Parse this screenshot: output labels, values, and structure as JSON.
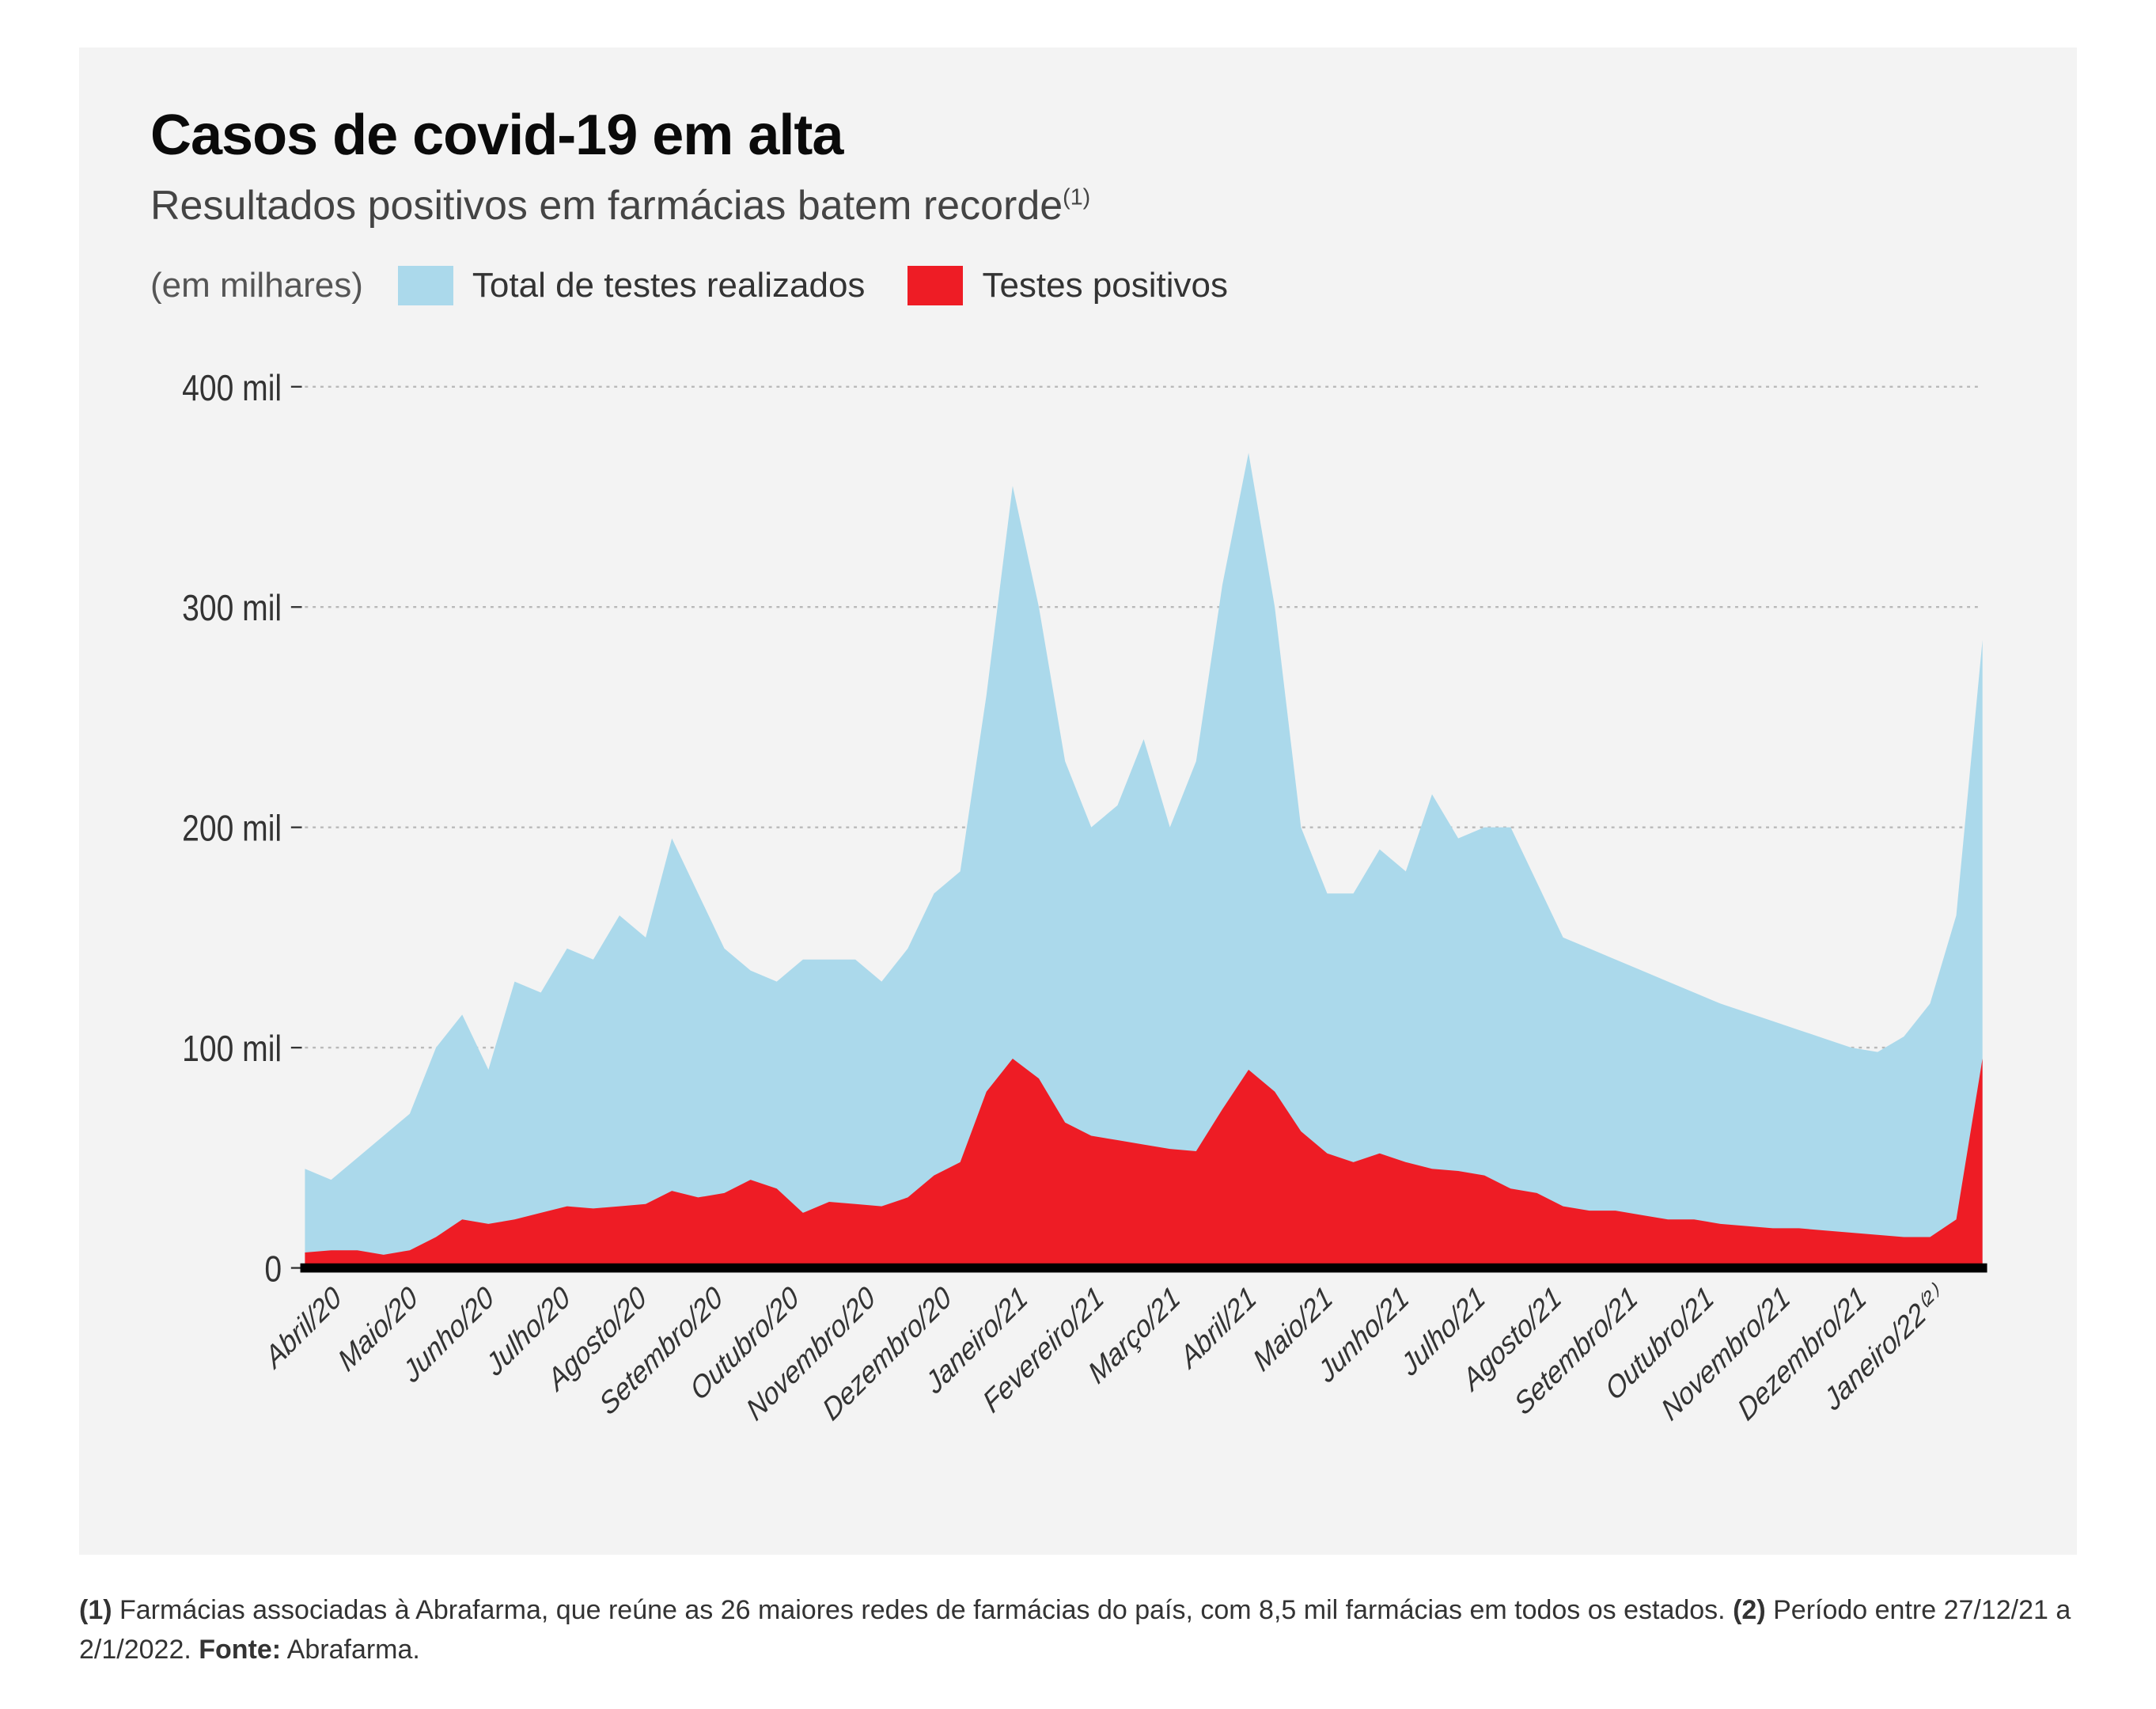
{
  "title": "Casos de covid-19 em alta",
  "subtitle_main": "Resultados positivos em farmácias batem recorde",
  "subtitle_sup": "(1)",
  "legend": {
    "unit": "(em milhares)",
    "series_total_label": "Total de testes realizados",
    "series_positive_label": "Testes positivos"
  },
  "chart": {
    "type": "area",
    "background_color": "#f3f3f3",
    "grid_color": "#b9b9b9",
    "baseline_color": "#000000",
    "ylim": [
      0,
      410
    ],
    "yticks": [
      0,
      100,
      200,
      300,
      400
    ],
    "ytick_labels": [
      "0",
      "100 mil",
      "200 mil",
      "300 mil",
      "400 mil"
    ],
    "ytick_fontsize": 40,
    "xtick_fontsize": 34,
    "xtick_rotation_deg": -40,
    "x_labels": [
      "Abril/20",
      "Maio/20",
      "Junho/20",
      "Julho/20",
      "Agosto/20",
      "Setembro/20",
      "Outubro/20",
      "Novembro/20",
      "Dezembro/20",
      "Janeiro/21",
      "Fevereiro/21",
      "Março/21",
      "Abril/21",
      "Maio/21",
      "Junho/21",
      "Julho/21",
      "Agosto/21",
      "Setembro/21",
      "Outubro/21",
      "Novembro/21",
      "Dezembro/21",
      "Janeiro/22⁽²⁾"
    ],
    "series_total": {
      "color": "#abd9eb",
      "values": [
        45,
        40,
        50,
        60,
        70,
        100,
        115,
        90,
        130,
        125,
        145,
        140,
        160,
        150,
        195,
        170,
        145,
        135,
        130,
        140,
        140,
        140,
        130,
        145,
        170,
        180,
        260,
        355,
        300,
        230,
        200,
        210,
        240,
        200,
        230,
        310,
        370,
        300,
        200,
        170,
        170,
        190,
        180,
        215,
        195,
        200,
        200,
        175,
        150,
        145,
        140,
        135,
        130,
        125,
        120,
        116,
        112,
        108,
        104,
        100,
        98,
        105,
        120,
        160,
        285
      ]
    },
    "series_positive": {
      "color": "#ee1c25",
      "values": [
        7,
        8,
        8,
        6,
        8,
        14,
        22,
        20,
        22,
        25,
        28,
        27,
        28,
        29,
        35,
        32,
        34,
        40,
        36,
        25,
        30,
        29,
        28,
        32,
        42,
        48,
        80,
        95,
        86,
        66,
        60,
        58,
        56,
        54,
        53,
        72,
        90,
        80,
        62,
        52,
        48,
        52,
        48,
        45,
        44,
        42,
        36,
        34,
        28,
        26,
        26,
        24,
        22,
        22,
        20,
        19,
        18,
        18,
        17,
        16,
        15,
        14,
        14,
        22,
        95
      ]
    }
  },
  "footnote": {
    "n1_label": "(1)",
    "n1_text": " Farmácias associadas à Abrafarma, que reúne as 26 maiores redes de farmácias do país, com 8,5 mil farmácias em todos os estados. ",
    "n2_label": "(2)",
    "n2_text": " Período entre 27/12/21 a 2/1/2022. ",
    "source_label": "Fonte:",
    "source_text": " Abrafarma."
  }
}
